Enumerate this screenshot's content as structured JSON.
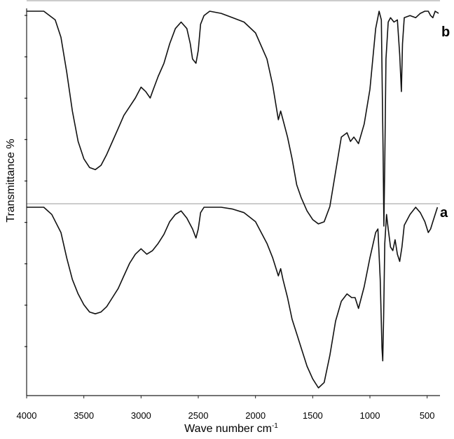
{
  "chart_data": {
    "type": "line",
    "title": "",
    "xlabel": "Wave number cm",
    "xlabel_sup": "-1",
    "ylabel": "Transmittance %",
    "xlim": [
      4000,
      400
    ],
    "x_reversed": true,
    "x_ticks": [
      4000,
      3500,
      3000,
      2500,
      2000,
      1500,
      1000,
      500
    ],
    "y_tick_count": 9,
    "grid": false,
    "series": [
      {
        "name": "b",
        "baseline": 0.0,
        "points": [
          [
            4000,
            0.0
          ],
          [
            3850,
            0.0
          ],
          [
            3750,
            0.04
          ],
          [
            3700,
            0.12
          ],
          [
            3650,
            0.28
          ],
          [
            3600,
            0.46
          ],
          [
            3550,
            0.6
          ],
          [
            3500,
            0.68
          ],
          [
            3450,
            0.72
          ],
          [
            3400,
            0.73
          ],
          [
            3350,
            0.71
          ],
          [
            3300,
            0.66
          ],
          [
            3250,
            0.6
          ],
          [
            3200,
            0.54
          ],
          [
            3150,
            0.48
          ],
          [
            3100,
            0.44
          ],
          [
            3050,
            0.4
          ],
          [
            3000,
            0.35
          ],
          [
            2960,
            0.37
          ],
          [
            2920,
            0.4
          ],
          [
            2900,
            0.37
          ],
          [
            2850,
            0.3
          ],
          [
            2800,
            0.24
          ],
          [
            2750,
            0.15
          ],
          [
            2700,
            0.08
          ],
          [
            2650,
            0.05
          ],
          [
            2600,
            0.08
          ],
          [
            2570,
            0.15
          ],
          [
            2550,
            0.22
          ],
          [
            2520,
            0.24
          ],
          [
            2500,
            0.18
          ],
          [
            2480,
            0.06
          ],
          [
            2450,
            0.02
          ],
          [
            2400,
            0.0
          ],
          [
            2300,
            0.01
          ],
          [
            2200,
            0.03
          ],
          [
            2100,
            0.05
          ],
          [
            2000,
            0.1
          ],
          [
            1900,
            0.22
          ],
          [
            1850,
            0.34
          ],
          [
            1800,
            0.5
          ],
          [
            1780,
            0.46
          ],
          [
            1760,
            0.5
          ],
          [
            1720,
            0.58
          ],
          [
            1680,
            0.68
          ],
          [
            1640,
            0.8
          ],
          [
            1600,
            0.86
          ],
          [
            1550,
            0.92
          ],
          [
            1500,
            0.96
          ],
          [
            1450,
            0.98
          ],
          [
            1400,
            0.97
          ],
          [
            1350,
            0.9
          ],
          [
            1300,
            0.74
          ],
          [
            1250,
            0.58
          ],
          [
            1200,
            0.56
          ],
          [
            1170,
            0.6
          ],
          [
            1140,
            0.58
          ],
          [
            1100,
            0.61
          ],
          [
            1050,
            0.52
          ],
          [
            1000,
            0.36
          ],
          [
            950,
            0.08
          ],
          [
            920,
            0.0
          ],
          [
            900,
            0.04
          ],
          [
            885,
            0.65
          ],
          [
            878,
            0.99
          ],
          [
            870,
            0.7
          ],
          [
            860,
            0.22
          ],
          [
            840,
            0.05
          ],
          [
            820,
            0.03
          ],
          [
            790,
            0.05
          ],
          [
            760,
            0.04
          ],
          [
            740,
            0.2
          ],
          [
            725,
            0.37
          ],
          [
            715,
            0.15
          ],
          [
            700,
            0.03
          ],
          [
            650,
            0.02
          ],
          [
            600,
            0.03
          ],
          [
            560,
            0.01
          ],
          [
            520,
            0.0
          ],
          [
            490,
            0.0
          ],
          [
            470,
            0.02
          ],
          [
            450,
            0.03
          ],
          [
            430,
            0.0
          ],
          [
            400,
            0.01
          ]
        ]
      },
      {
        "name": "a",
        "baseline": 0.0,
        "points": [
          [
            4000,
            0.0
          ],
          [
            3850,
            0.0
          ],
          [
            3780,
            0.04
          ],
          [
            3700,
            0.14
          ],
          [
            3650,
            0.28
          ],
          [
            3600,
            0.4
          ],
          [
            3550,
            0.48
          ],
          [
            3500,
            0.54
          ],
          [
            3450,
            0.58
          ],
          [
            3400,
            0.59
          ],
          [
            3350,
            0.58
          ],
          [
            3300,
            0.55
          ],
          [
            3250,
            0.5
          ],
          [
            3200,
            0.45
          ],
          [
            3150,
            0.38
          ],
          [
            3100,
            0.31
          ],
          [
            3050,
            0.26
          ],
          [
            3000,
            0.23
          ],
          [
            2950,
            0.26
          ],
          [
            2900,
            0.24
          ],
          [
            2850,
            0.2
          ],
          [
            2800,
            0.15
          ],
          [
            2750,
            0.08
          ],
          [
            2700,
            0.04
          ],
          [
            2650,
            0.02
          ],
          [
            2600,
            0.06
          ],
          [
            2550,
            0.12
          ],
          [
            2520,
            0.17
          ],
          [
            2500,
            0.12
          ],
          [
            2480,
            0.03
          ],
          [
            2450,
            0.0
          ],
          [
            2400,
            0.0
          ],
          [
            2300,
            0.0
          ],
          [
            2200,
            0.01
          ],
          [
            2100,
            0.03
          ],
          [
            2000,
            0.08
          ],
          [
            1900,
            0.2
          ],
          [
            1850,
            0.28
          ],
          [
            1800,
            0.38
          ],
          [
            1780,
            0.34
          ],
          [
            1760,
            0.4
          ],
          [
            1720,
            0.5
          ],
          [
            1680,
            0.62
          ],
          [
            1640,
            0.7
          ],
          [
            1600,
            0.78
          ],
          [
            1550,
            0.88
          ],
          [
            1500,
            0.95
          ],
          [
            1450,
            1.0
          ],
          [
            1400,
            0.97
          ],
          [
            1350,
            0.82
          ],
          [
            1300,
            0.63
          ],
          [
            1250,
            0.52
          ],
          [
            1200,
            0.48
          ],
          [
            1160,
            0.5
          ],
          [
            1130,
            0.5
          ],
          [
            1100,
            0.56
          ],
          [
            1050,
            0.44
          ],
          [
            1000,
            0.28
          ],
          [
            950,
            0.14
          ],
          [
            930,
            0.12
          ],
          [
            910,
            0.4
          ],
          [
            895,
            0.78
          ],
          [
            888,
            0.85
          ],
          [
            880,
            0.6
          ],
          [
            870,
            0.2
          ],
          [
            855,
            0.04
          ],
          [
            840,
            0.12
          ],
          [
            820,
            0.22
          ],
          [
            800,
            0.24
          ],
          [
            780,
            0.18
          ],
          [
            760,
            0.26
          ],
          [
            740,
            0.3
          ],
          [
            720,
            0.22
          ],
          [
            700,
            0.1
          ],
          [
            650,
            0.04
          ],
          [
            600,
            0.0
          ],
          [
            560,
            0.03
          ],
          [
            520,
            0.08
          ],
          [
            490,
            0.14
          ],
          [
            470,
            0.12
          ],
          [
            450,
            0.08
          ],
          [
            430,
            0.04
          ],
          [
            410,
            0.0
          ]
        ]
      }
    ]
  }
}
